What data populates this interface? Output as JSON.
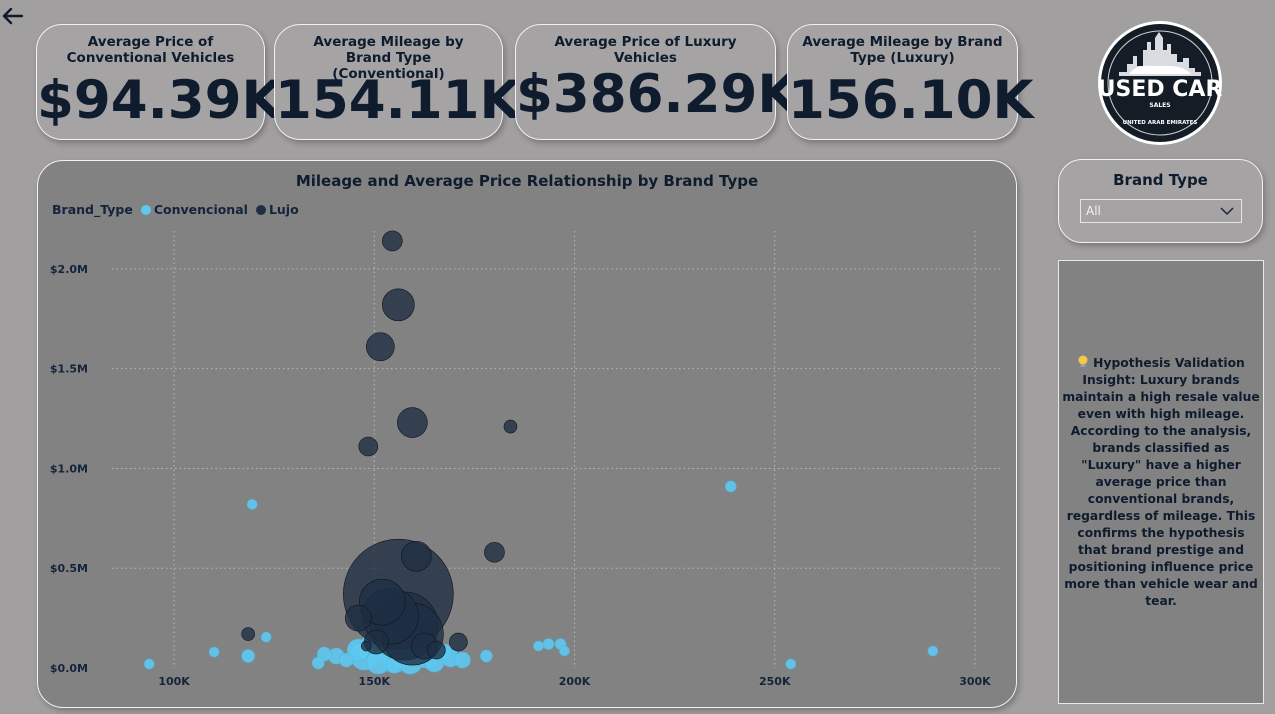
{
  "nav": {
    "back_icon": "arrow-left-icon"
  },
  "kpis": [
    {
      "title": "Average Price of Conventional Vehicles",
      "value": "$94.39K"
    },
    {
      "title": "Average Mileage by Brand Type (Conventional)",
      "value": "154.11K"
    },
    {
      "title": "Average Price of Luxury Vehicles",
      "value": "$386.29K"
    },
    {
      "title": "Average Mileage by Brand Type (Luxury)",
      "value": "156.10K"
    }
  ],
  "logo": {
    "line1": "USED CAR",
    "line2": "SALES",
    "line3": "UNITED ARAB EMIRATES"
  },
  "slicer": {
    "title": "Brand Type",
    "selected": "All"
  },
  "insight": {
    "icon": "lightbulb-icon",
    "text": "Hypothesis Validation Insight: Luxury brands maintain a high resale value even with high mileage. According to the analysis, brands classified as \"Luxury\" have a higher average price than conventional brands, regardless of mileage. This confirms the hypothesis that brand prestige and positioning influence price more than vehicle wear and tear."
  },
  "colors": {
    "conventional": "#5ec8ef",
    "luxury": "#1f2e42",
    "background": "#a19f9f",
    "chart_bg": "#828282"
  },
  "chart_data": {
    "type": "scatter",
    "title": "Mileage and Average Price Relationship by Brand Type",
    "legend_title": "Brand_Type",
    "legend_position": "top-left",
    "grid": true,
    "xlim": [
      82000,
      307000
    ],
    "ylim": [
      0,
      2240000
    ],
    "x_ticks": [
      100000,
      150000,
      200000,
      250000,
      300000
    ],
    "x_tick_labels": [
      "100K",
      "150K",
      "200K",
      "250K",
      "300K"
    ],
    "y_ticks": [
      0,
      500000,
      1000000,
      1500000,
      2000000
    ],
    "y_tick_labels": [
      "$0.0M",
      "$0.5M",
      "$1.0M",
      "$1.5M",
      "$2.0M"
    ],
    "series": [
      {
        "name": "Convencional",
        "color": "#5ec8ef",
        "points": [
          {
            "x": 93800,
            "y": 20000,
            "s": 1
          },
          {
            "x": 110000,
            "y": 80000,
            "s": 1
          },
          {
            "x": 118500,
            "y": 60000,
            "s": 1.3
          },
          {
            "x": 119500,
            "y": 820000,
            "s": 1
          },
          {
            "x": 123000,
            "y": 155000,
            "s": 1
          },
          {
            "x": 136000,
            "y": 25000,
            "s": 1.2
          },
          {
            "x": 137500,
            "y": 70000,
            "s": 1.4
          },
          {
            "x": 140500,
            "y": 60000,
            "s": 1.6
          },
          {
            "x": 143000,
            "y": 40000,
            "s": 1.4
          },
          {
            "x": 146000,
            "y": 90000,
            "s": 2.2
          },
          {
            "x": 147500,
            "y": 60000,
            "s": 2.8
          },
          {
            "x": 150000,
            "y": 100000,
            "s": 3.0
          },
          {
            "x": 151000,
            "y": 30000,
            "s": 2.4
          },
          {
            "x": 153000,
            "y": 120000,
            "s": 3.2
          },
          {
            "x": 155000,
            "y": 40000,
            "s": 2.6
          },
          {
            "x": 157000,
            "y": 80000,
            "s": 2.8
          },
          {
            "x": 159000,
            "y": 30000,
            "s": 2.4
          },
          {
            "x": 161000,
            "y": 110000,
            "s": 2.8
          },
          {
            "x": 163000,
            "y": 60000,
            "s": 2.4
          },
          {
            "x": 165000,
            "y": 30000,
            "s": 2.0
          },
          {
            "x": 167500,
            "y": 80000,
            "s": 1.6
          },
          {
            "x": 169000,
            "y": 50000,
            "s": 1.8
          },
          {
            "x": 172000,
            "y": 40000,
            "s": 1.6
          },
          {
            "x": 155000,
            "y": 15000,
            "s": 1.6
          },
          {
            "x": 178000,
            "y": 60000,
            "s": 1.2
          },
          {
            "x": 191000,
            "y": 110000,
            "s": 1
          },
          {
            "x": 193500,
            "y": 120000,
            "s": 1.1
          },
          {
            "x": 196500,
            "y": 120000,
            "s": 1.1
          },
          {
            "x": 197500,
            "y": 85000,
            "s": 1
          },
          {
            "x": 239000,
            "y": 910000,
            "s": 1.1
          },
          {
            "x": 254000,
            "y": 20000,
            "s": 1
          },
          {
            "x": 289500,
            "y": 85000,
            "s": 1
          }
        ]
      },
      {
        "name": "Lujo",
        "color": "#1f2e42",
        "points": [
          {
            "x": 154500,
            "y": 2140000,
            "s": 2.0
          },
          {
            "x": 156000,
            "y": 1820000,
            "s": 3.2
          },
          {
            "x": 151500,
            "y": 1610000,
            "s": 2.8
          },
          {
            "x": 159500,
            "y": 1230000,
            "s": 3.0
          },
          {
            "x": 148500,
            "y": 1110000,
            "s": 1.9
          },
          {
            "x": 184000,
            "y": 1210000,
            "s": 1.3
          },
          {
            "x": 160500,
            "y": 560000,
            "s": 3.0
          },
          {
            "x": 180000,
            "y": 580000,
            "s": 2.0
          },
          {
            "x": 118500,
            "y": 170000,
            "s": 1.3
          },
          {
            "x": 156000,
            "y": 370000,
            "s": 11.0
          },
          {
            "x": 152000,
            "y": 330000,
            "s": 4.6
          },
          {
            "x": 154000,
            "y": 260000,
            "s": 5.6
          },
          {
            "x": 157500,
            "y": 210000,
            "s": 6.8
          },
          {
            "x": 159500,
            "y": 170000,
            "s": 6.2
          },
          {
            "x": 146000,
            "y": 250000,
            "s": 2.6
          },
          {
            "x": 162500,
            "y": 110000,
            "s": 2.6
          },
          {
            "x": 150500,
            "y": 130000,
            "s": 2.4
          },
          {
            "x": 171000,
            "y": 130000,
            "s": 1.8
          },
          {
            "x": 148000,
            "y": 110000,
            "s": 1.0
          },
          {
            "x": 165500,
            "y": 90000,
            "s": 1.8
          }
        ]
      }
    ]
  }
}
